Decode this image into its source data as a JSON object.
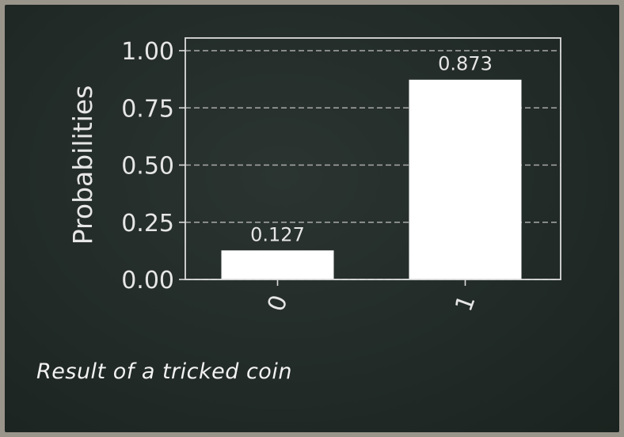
{
  "chart_data": {
    "type": "bar",
    "categories": [
      "0",
      "1"
    ],
    "values": [
      0.127,
      0.873
    ],
    "data_labels": [
      "0.127",
      "0.873"
    ],
    "title": "",
    "xlabel": "",
    "ylabel": "Probabilities",
    "ylim": [
      0,
      1.0
    ],
    "yticks": [
      "0.00",
      "0.25",
      "0.50",
      "0.75",
      "1.00"
    ],
    "grid": "horizontal dashed",
    "colors": {
      "bar": "#ffffff",
      "axis": "#dcdcdc",
      "background": "#242d2a"
    }
  },
  "caption": "Result of a tricked coin"
}
